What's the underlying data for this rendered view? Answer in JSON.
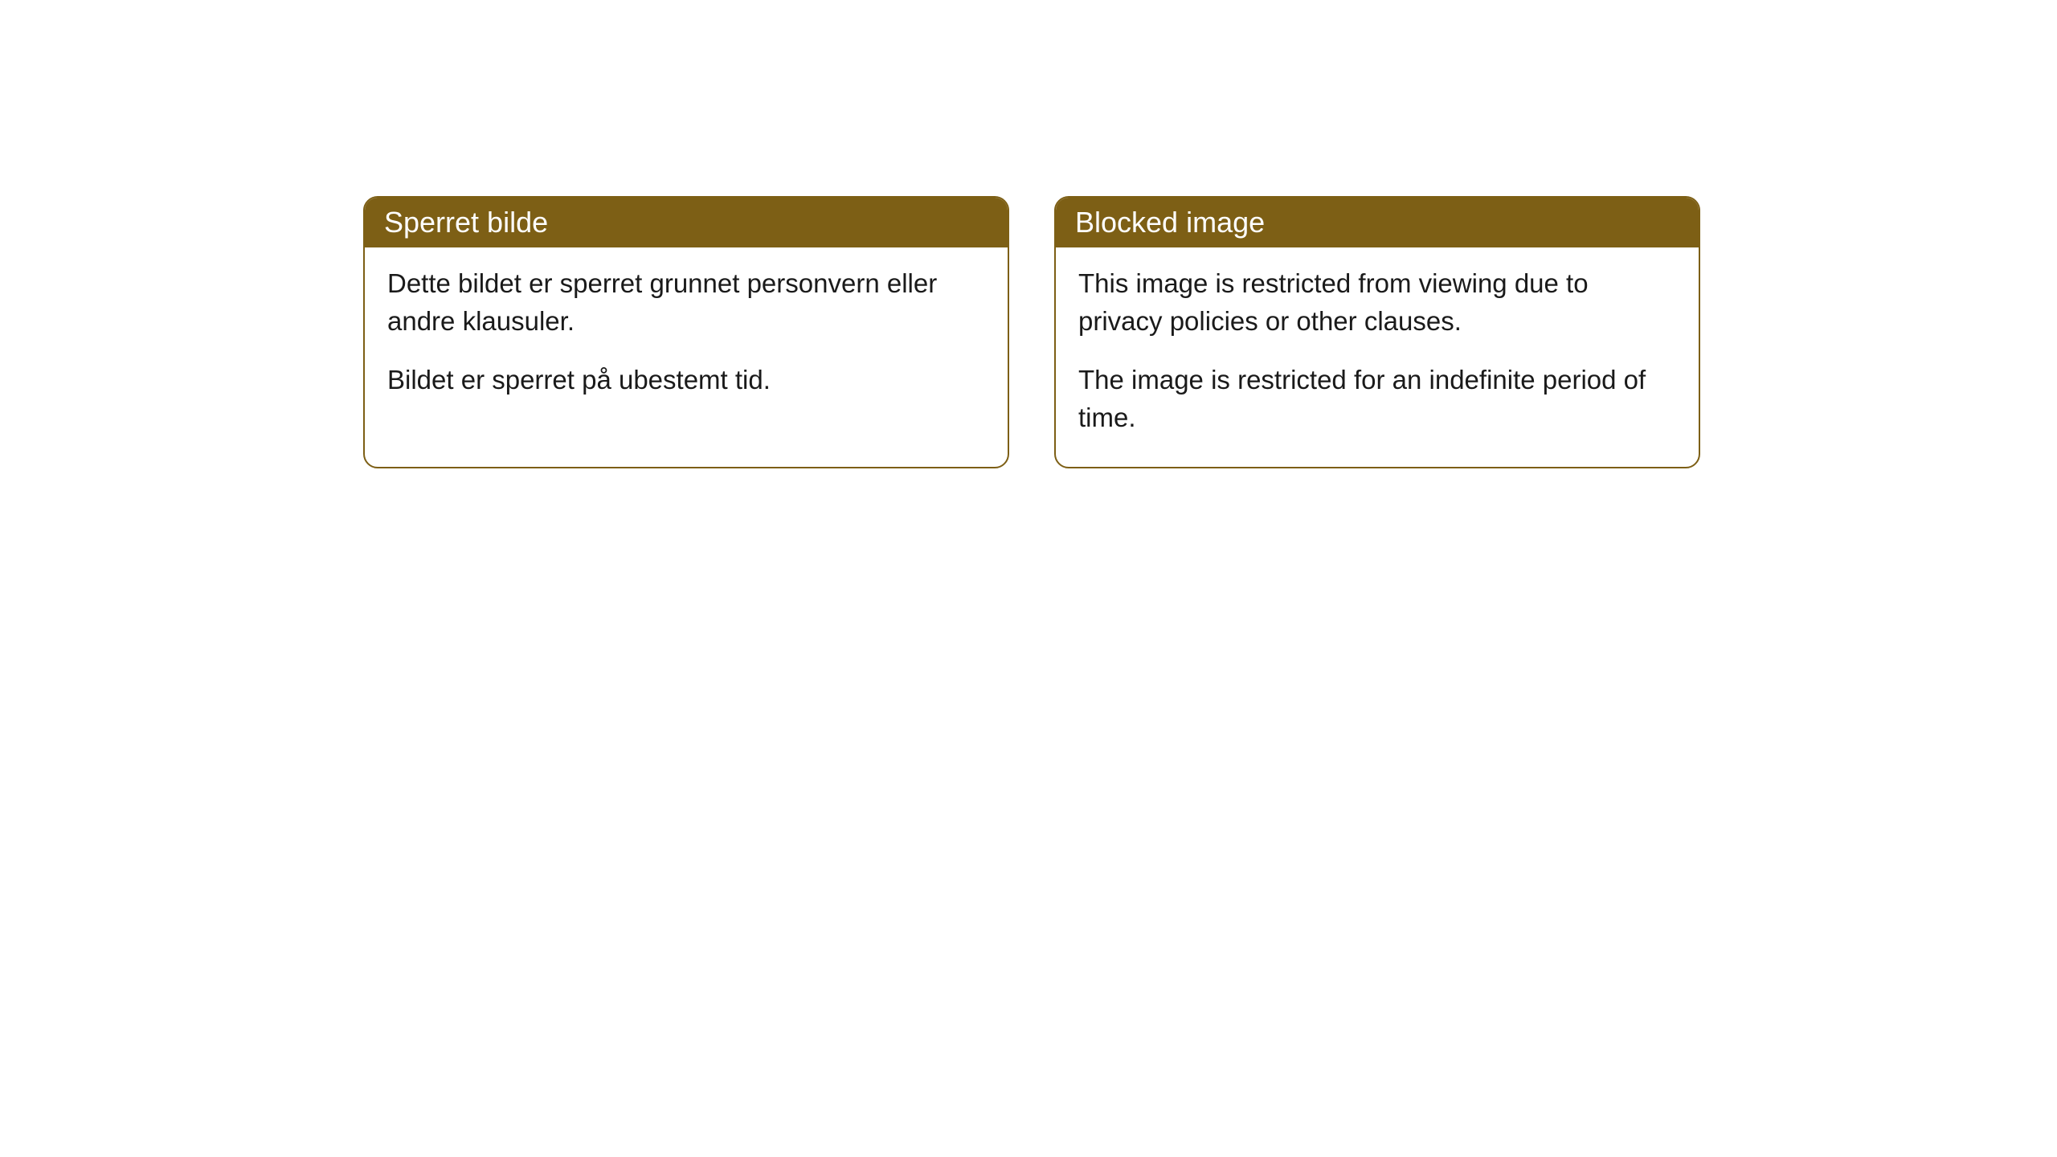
{
  "cards": [
    {
      "title": "Sperret bilde",
      "paragraph1": "Dette bildet er sperret grunnet personvern eller andre klausuler.",
      "paragraph2": "Bildet er sperret på ubestemt tid."
    },
    {
      "title": "Blocked image",
      "paragraph1": "This image is restricted from viewing due to privacy policies or other clauses.",
      "paragraph2": "The image is restricted for an indefinite period of time."
    }
  ],
  "styling": {
    "header_bg_color": "#7d5f15",
    "header_text_color": "#ffffff",
    "border_color": "#7d5f15",
    "body_bg_color": "#ffffff",
    "body_text_color": "#1a1a1a",
    "border_radius": 18,
    "title_fontsize": 36,
    "body_fontsize": 33
  }
}
